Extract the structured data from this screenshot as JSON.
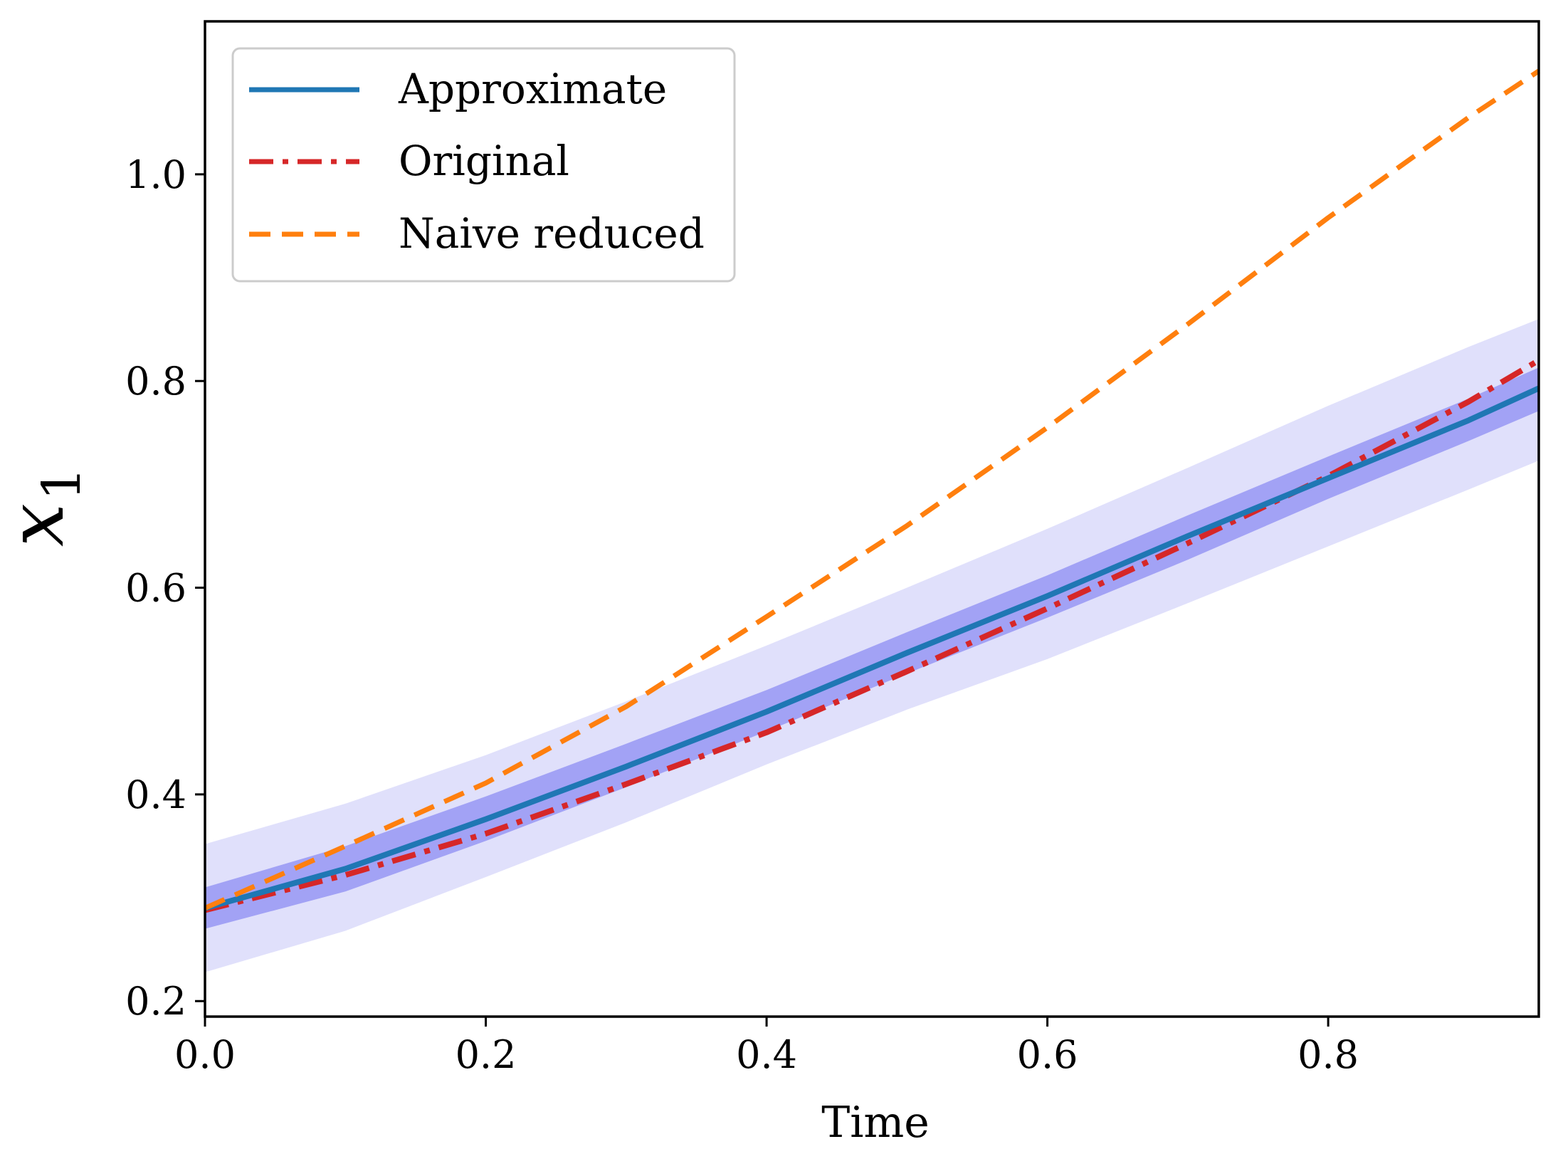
{
  "chart_data": {
    "type": "line",
    "title": "",
    "xlabel": "Time",
    "ylabel": "x",
    "ylabel_subscript": "1",
    "xlim": [
      0.0,
      0.95
    ],
    "ylim": [
      0.185,
      1.148
    ],
    "xticks": [
      0.0,
      0.2,
      0.4,
      0.6,
      0.8
    ],
    "xtick_labels": [
      "0.0",
      "0.2",
      "0.4",
      "0.6",
      "0.8"
    ],
    "yticks": [
      0.2,
      0.4,
      0.6,
      0.8,
      1.0
    ],
    "ytick_labels": [
      "0.2",
      "0.4",
      "0.6",
      "0.8",
      "1.0"
    ],
    "grid": false,
    "legend_position": "top-left",
    "series": [
      {
        "name": "Approximate",
        "style": "solid",
        "color": "#1f77b4",
        "x": [
          0.0,
          0.1,
          0.2,
          0.3,
          0.4,
          0.5,
          0.6,
          0.7,
          0.8,
          0.9,
          0.95
        ],
        "y": [
          0.29,
          0.328,
          0.376,
          0.427,
          0.48,
          0.537,
          0.592,
          0.65,
          0.706,
          0.762,
          0.793
        ]
      },
      {
        "name": "Original",
        "style": "dashdot",
        "color": "#d62728",
        "x": [
          0.0,
          0.1,
          0.2,
          0.3,
          0.4,
          0.5,
          0.6,
          0.7,
          0.8,
          0.9,
          0.95
        ],
        "y": [
          0.288,
          0.322,
          0.362,
          0.41,
          0.46,
          0.519,
          0.58,
          0.643,
          0.708,
          0.78,
          0.82
        ]
      },
      {
        "name": "Naive reduced",
        "style": "dashed",
        "color": "#ff7f0e",
        "x": [
          0.0,
          0.1,
          0.2,
          0.3,
          0.4,
          0.5,
          0.6,
          0.7,
          0.8,
          0.9,
          0.95
        ],
        "y": [
          0.29,
          0.35,
          0.411,
          0.485,
          0.572,
          0.66,
          0.755,
          0.855,
          0.958,
          1.055,
          1.1
        ]
      }
    ],
    "bands": [
      {
        "name": "outer-band",
        "color": "#e0e0fb",
        "x": [
          0.0,
          0.1,
          0.2,
          0.3,
          0.4,
          0.5,
          0.6,
          0.7,
          0.8,
          0.9,
          0.95
        ],
        "lower": [
          0.228,
          0.268,
          0.32,
          0.373,
          0.429,
          0.482,
          0.531,
          0.585,
          0.64,
          0.695,
          0.723
        ],
        "upper": [
          0.352,
          0.391,
          0.438,
          0.49,
          0.544,
          0.6,
          0.657,
          0.716,
          0.776,
          0.833,
          0.86
        ]
      },
      {
        "name": "inner-band",
        "color": "#a2a2f5",
        "x": [
          0.0,
          0.1,
          0.2,
          0.3,
          0.4,
          0.5,
          0.6,
          0.7,
          0.8,
          0.9,
          0.95
        ],
        "lower": [
          0.27,
          0.306,
          0.355,
          0.407,
          0.461,
          0.517,
          0.571,
          0.627,
          0.686,
          0.742,
          0.771
        ],
        "upper": [
          0.31,
          0.35,
          0.398,
          0.449,
          0.501,
          0.557,
          0.612,
          0.67,
          0.727,
          0.783,
          0.813
        ]
      }
    ]
  }
}
